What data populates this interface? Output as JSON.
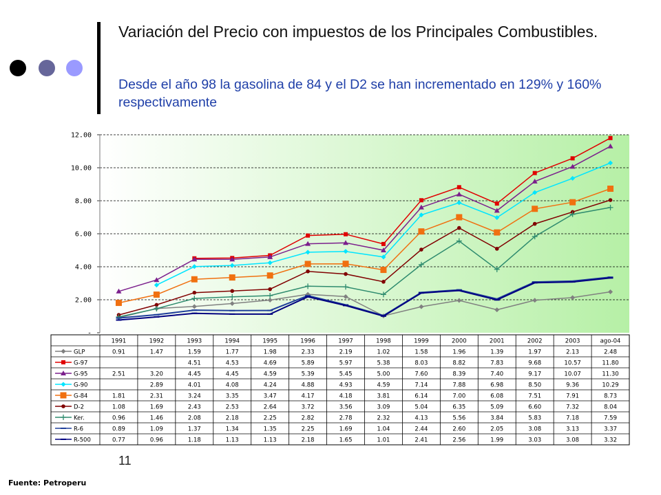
{
  "slide": {
    "title": "Variación del Precio con impuestos de los Principales Combustibles.",
    "subtitle": "Desde el año 98 la gasolina de 84 y el D2 se han incrementado en 129% y 160% respectivamente",
    "page_number": "11",
    "source": "Fuente: Petroperu"
  },
  "chart_data": {
    "type": "line",
    "ylim": [
      0,
      12
    ],
    "y_ticks": [
      "-",
      "2.00",
      "4.00",
      "6.00",
      "8.00",
      "10.00",
      "12.00"
    ],
    "grid": "horizontal dashed",
    "plot_background": "gradient white to light green",
    "x": [
      "1991",
      "1992",
      "1993",
      "1994",
      "1995",
      "1996",
      "1997",
      "1998",
      "1999",
      "2000",
      "2001",
      "2002",
      "2003",
      "ago-04"
    ],
    "series": [
      {
        "name": "GLP",
        "color": "#808080",
        "marker": "diamond",
        "values": [
          0.91,
          1.47,
          1.59,
          1.77,
          1.98,
          2.33,
          2.19,
          1.02,
          1.58,
          1.96,
          1.39,
          1.97,
          2.13,
          2.48
        ]
      },
      {
        "name": "G-97",
        "color": "#e00000",
        "marker": "square",
        "values": [
          null,
          null,
          4.51,
          4.53,
          4.69,
          5.89,
          5.97,
          5.38,
          8.03,
          8.82,
          7.83,
          9.68,
          10.57,
          11.8
        ]
      },
      {
        "name": "G-95",
        "color": "#7b1f8c",
        "marker": "triangle",
        "values": [
          2.51,
          3.2,
          4.45,
          4.45,
          4.59,
          5.39,
          5.45,
          5.0,
          7.6,
          8.39,
          7.4,
          9.17,
          10.07,
          11.3
        ]
      },
      {
        "name": "G-90",
        "color": "#00e5ff",
        "marker": "diamond",
        "values": [
          null,
          2.89,
          4.01,
          4.08,
          4.24,
          4.88,
          4.93,
          4.59,
          7.14,
          7.88,
          6.98,
          8.5,
          9.36,
          10.29
        ]
      },
      {
        "name": "G-84",
        "color": "#f07010",
        "marker": "big-square",
        "values": [
          1.81,
          2.31,
          3.24,
          3.35,
          3.47,
          4.17,
          4.18,
          3.81,
          6.14,
          7.0,
          6.08,
          7.51,
          7.91,
          8.73
        ]
      },
      {
        "name": "D-2",
        "color": "#800000",
        "marker": "circle",
        "values": [
          1.08,
          1.69,
          2.43,
          2.53,
          2.64,
          3.72,
          3.56,
          3.09,
          5.04,
          6.35,
          5.09,
          6.6,
          7.32,
          8.04
        ]
      },
      {
        "name": "Ker.",
        "color": "#2e8b6e",
        "marker": "plus",
        "values": [
          0.96,
          1.46,
          2.08,
          2.18,
          2.25,
          2.82,
          2.78,
          2.32,
          4.13,
          5.56,
          3.84,
          5.83,
          7.18,
          7.59
        ]
      },
      {
        "name": "R-6",
        "color": "#1f3f9a",
        "marker": "dash",
        "values": [
          0.89,
          1.09,
          1.37,
          1.34,
          1.35,
          2.25,
          1.69,
          1.04,
          2.44,
          2.6,
          2.05,
          3.08,
          3.13,
          3.37
        ]
      },
      {
        "name": "R-500",
        "color": "#000080",
        "marker": "dash",
        "values": [
          0.77,
          0.96,
          1.18,
          1.13,
          1.13,
          2.18,
          1.65,
          1.01,
          2.41,
          2.56,
          1.99,
          3.03,
          3.08,
          3.32
        ]
      }
    ],
    "table": [
      [
        "0.91",
        "1.47",
        "1.59",
        "1.77",
        "1.98",
        "2.33",
        "2.19",
        "1.02",
        "1.58",
        "1.96",
        "1.39",
        "1.97",
        "2.13",
        "2.48"
      ],
      [
        "",
        "",
        "4.51",
        "4.53",
        "4.69",
        "5.89",
        "5.97",
        "5.38",
        "8.03",
        "8.82",
        "7.83",
        "9.68",
        "10.57",
        "11.80"
      ],
      [
        "2.51",
        "3.20",
        "4.45",
        "4.45",
        "4.59",
        "5.39",
        "5.45",
        "5.00",
        "7.60",
        "8.39",
        "7.40",
        "9.17",
        "10.07",
        "11.30"
      ],
      [
        "",
        "2.89",
        "4.01",
        "4.08",
        "4.24",
        "4.88",
        "4.93",
        "4.59",
        "7.14",
        "7.88",
        "6.98",
        "8.50",
        "9.36",
        "10.29"
      ],
      [
        "1.81",
        "2.31",
        "3.24",
        "3.35",
        "3.47",
        "4.17",
        "4.18",
        "3.81",
        "6.14",
        "7.00",
        "6.08",
        "7.51",
        "7.91",
        "8.73"
      ],
      [
        "1.08",
        "1.69",
        "2.43",
        "2.53",
        "2.64",
        "3.72",
        "3.56",
        "3.09",
        "5.04",
        "6.35",
        "5.09",
        "6.60",
        "7.32",
        "8.04"
      ],
      [
        "0.96",
        "1.46",
        "2.08",
        "2.18",
        "2.25",
        "2.82",
        "2.78",
        "2.32",
        "4.13",
        "5.56",
        "3.84",
        "5.83",
        "7.18",
        "7.59"
      ],
      [
        "0.89",
        "1.09",
        "1.37",
        "1.34",
        "1.35",
        "2.25",
        "1.69",
        "1.04",
        "2.44",
        "2.60",
        "2.05",
        "3.08",
        "3.13",
        "3.37"
      ],
      [
        "0.77",
        "0.96",
        "1.18",
        "1.13",
        "1.13",
        "2.18",
        "1.65",
        "1.01",
        "2.41",
        "2.56",
        "1.99",
        "3.03",
        "3.08",
        "3.32"
      ]
    ]
  }
}
